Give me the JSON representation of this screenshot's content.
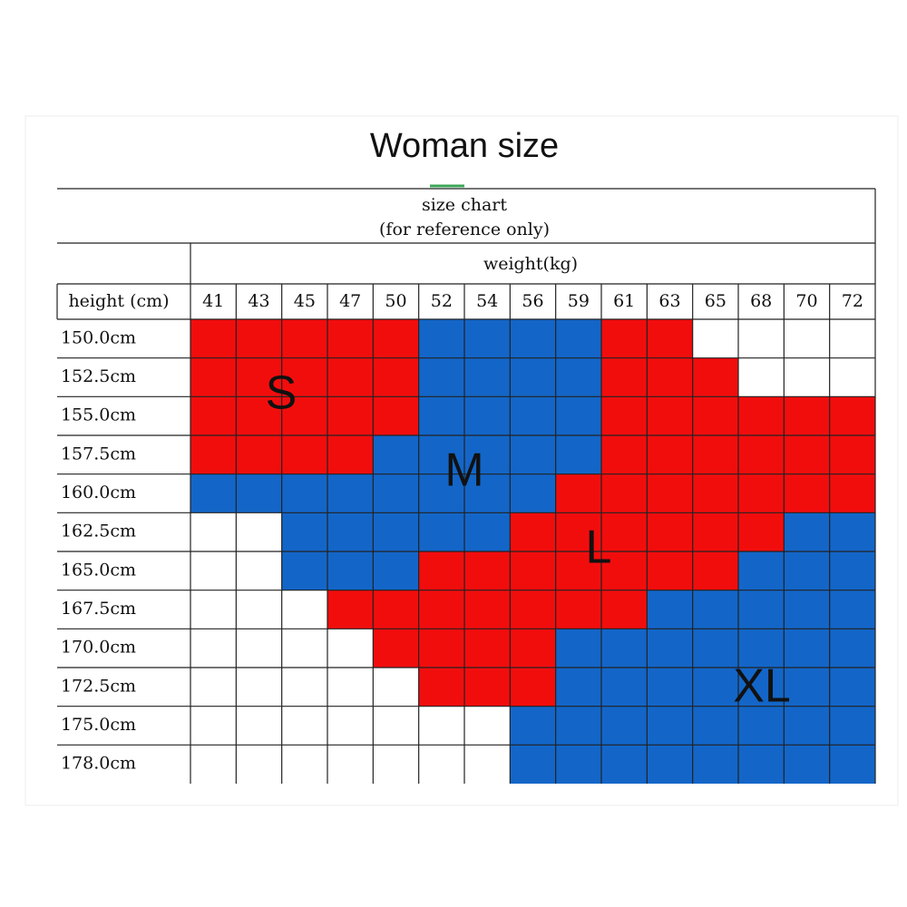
{
  "title": "Woman size",
  "header": {
    "line1": "size chart",
    "line2": "(for reference only)"
  },
  "weight_label": "weight(kg)",
  "height_label": "height (cm)",
  "weights": [
    "41",
    "43",
    "45",
    "47",
    "50",
    "52",
    "54",
    "56",
    "59",
    "61",
    "63",
    "65",
    "68",
    "70",
    "72"
  ],
  "heights": [
    "150.0cm",
    "152.5cm",
    "155.0cm",
    "157.5cm",
    "160.0cm",
    "162.5cm",
    "165.0cm",
    "167.5cm",
    "170.0cm",
    "172.5cm",
    "175.0cm",
    "178.0cm"
  ],
  "size_labels": [
    "S",
    "M",
    "L",
    "XL"
  ]
}
